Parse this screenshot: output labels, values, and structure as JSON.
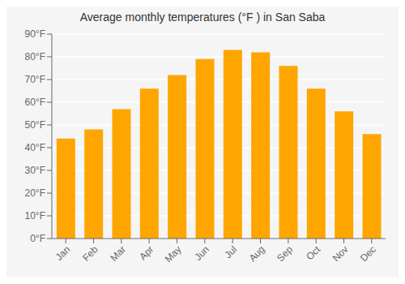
{
  "chart_data": {
    "type": "bar",
    "title": "Average monthly temperatures (°F ) in San Saba",
    "categories": [
      "Jan",
      "Feb",
      "Mar",
      "Apr",
      "May",
      "Jun",
      "Jul",
      "Aug",
      "Sep",
      "Oct",
      "Nov",
      "Dec"
    ],
    "values": [
      44,
      48,
      57,
      66,
      72,
      79,
      83,
      82,
      76,
      66,
      56,
      46
    ],
    "color": "#FFA500",
    "ylim": [
      0,
      90
    ],
    "yticks": [
      {
        "value": 0,
        "label": "0°F"
      },
      {
        "value": 10,
        "label": "10°F"
      },
      {
        "value": 20,
        "label": "20°F"
      },
      {
        "value": 30,
        "label": "30°F"
      },
      {
        "value": 40,
        "label": "40°F"
      },
      {
        "value": 50,
        "label": "50°F"
      },
      {
        "value": 60,
        "label": "60°F"
      },
      {
        "value": 70,
        "label": "70°F"
      },
      {
        "value": 80,
        "label": "80°F"
      },
      {
        "value": 90,
        "label": "90°F"
      }
    ],
    "grid": true
  }
}
